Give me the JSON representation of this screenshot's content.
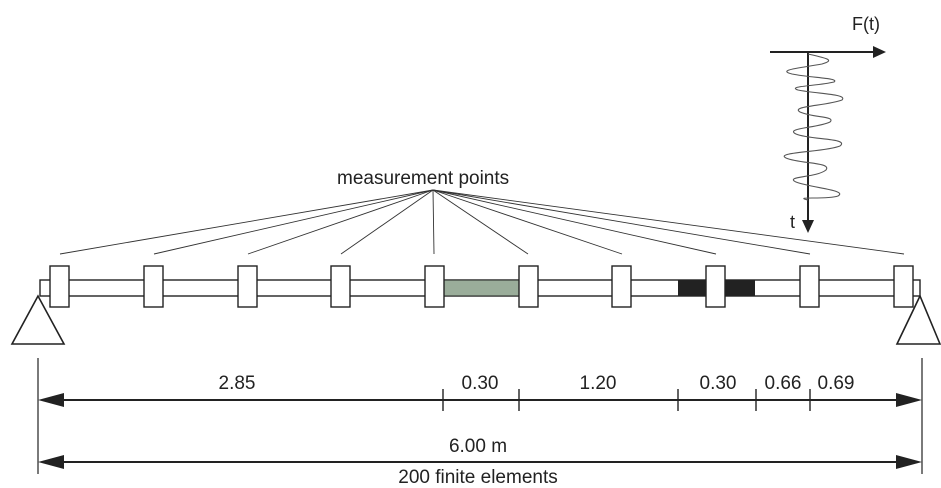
{
  "labels": {
    "measurement": "measurement points",
    "force": "F(t)",
    "time_axis": "t",
    "total_length": "6.00 m",
    "elements": "200 finite elements"
  },
  "segments": [
    "2.85",
    "0.30",
    "1.20",
    "0.30",
    "0.66",
    "0.69"
  ],
  "colors": {
    "line": "#222222",
    "healthy_damage_zone": "#9aad9a",
    "dark_damage_zone": "#222222"
  }
}
